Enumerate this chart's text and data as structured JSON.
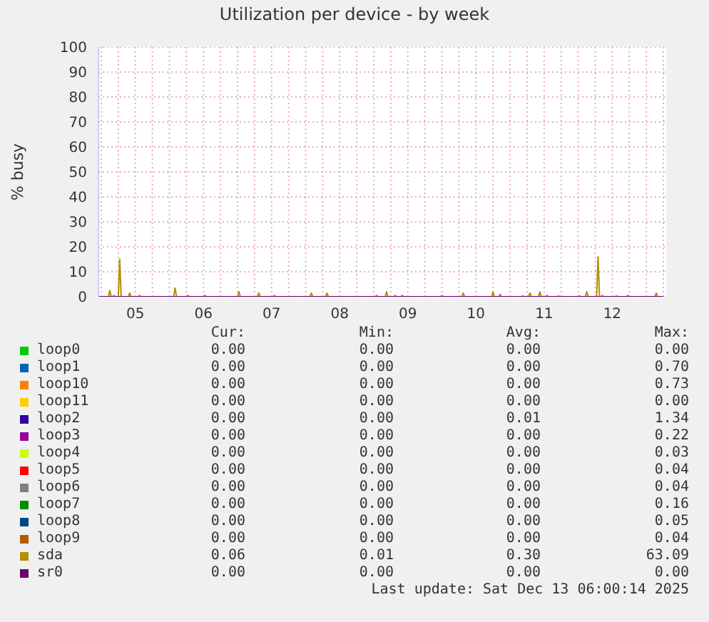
{
  "chart_data": {
    "type": "line",
    "title": "Utilization per device - by week",
    "ylabel": "% busy",
    "xlim": [
      "2025-12-04T23:00",
      "2025-12-13T07:00"
    ],
    "xticks": [
      {
        "value": "2025-12-05T00:00",
        "label": null
      },
      {
        "value": "2025-12-05T06:00",
        "label": null
      },
      {
        "value": "2025-12-05T12:00",
        "label": "05"
      },
      {
        "value": "2025-12-05T18:00",
        "label": null
      },
      {
        "value": "2025-12-06T00:00",
        "label": null
      },
      {
        "value": "2025-12-06T06:00",
        "label": null
      },
      {
        "value": "2025-12-06T12:00",
        "label": "06"
      },
      {
        "value": "2025-12-06T18:00",
        "label": null
      },
      {
        "value": "2025-12-07T00:00",
        "label": null
      },
      {
        "value": "2025-12-07T06:00",
        "label": null
      },
      {
        "value": "2025-12-07T12:00",
        "label": "07"
      },
      {
        "value": "2025-12-07T18:00",
        "label": null
      },
      {
        "value": "2025-12-08T00:00",
        "label": null
      },
      {
        "value": "2025-12-08T06:00",
        "label": null
      },
      {
        "value": "2025-12-08T12:00",
        "label": "08"
      },
      {
        "value": "2025-12-08T18:00",
        "label": null
      },
      {
        "value": "2025-12-09T00:00",
        "label": null
      },
      {
        "value": "2025-12-09T06:00",
        "label": null
      },
      {
        "value": "2025-12-09T12:00",
        "label": "09"
      },
      {
        "value": "2025-12-09T18:00",
        "label": null
      },
      {
        "value": "2025-12-10T00:00",
        "label": null
      },
      {
        "value": "2025-12-10T06:00",
        "label": null
      },
      {
        "value": "2025-12-10T12:00",
        "label": "10"
      },
      {
        "value": "2025-12-10T18:00",
        "label": null
      },
      {
        "value": "2025-12-11T00:00",
        "label": null
      },
      {
        "value": "2025-12-11T06:00",
        "label": null
      },
      {
        "value": "2025-12-11T12:00",
        "label": "11"
      },
      {
        "value": "2025-12-11T18:00",
        "label": null
      },
      {
        "value": "2025-12-12T00:00",
        "label": null
      },
      {
        "value": "2025-12-12T06:00",
        "label": null
      },
      {
        "value": "2025-12-12T12:00",
        "label": "12"
      },
      {
        "value": "2025-12-12T18:00",
        "label": null
      },
      {
        "value": "2025-12-13T00:00",
        "label": null
      },
      {
        "value": "2025-12-13T06:00",
        "label": null
      }
    ],
    "ylim": [
      0,
      100
    ],
    "yticks": [
      0,
      10,
      20,
      30,
      40,
      50,
      60,
      70,
      80,
      90,
      100
    ],
    "grid": true,
    "legend": "bottom",
    "series": [
      {
        "name": "loop0",
        "color": "#00cc00"
      },
      {
        "name": "loop1",
        "color": "#0066b3"
      },
      {
        "name": "loop10",
        "color": "#ff8000"
      },
      {
        "name": "loop11",
        "color": "#ffcc00"
      },
      {
        "name": "loop2",
        "color": "#330099"
      },
      {
        "name": "loop3",
        "color": "#990099"
      },
      {
        "name": "loop4",
        "color": "#ccff00"
      },
      {
        "name": "loop5",
        "color": "#ff0000"
      },
      {
        "name": "loop6",
        "color": "#808080"
      },
      {
        "name": "loop7",
        "color": "#008f00"
      },
      {
        "name": "loop8",
        "color": "#00487d"
      },
      {
        "name": "loop9",
        "color": "#b35a00"
      },
      {
        "name": "sda",
        "color": "#b38f00",
        "x": [
          "2025-12-04T23:00",
          "2025-12-05T02:30",
          "2025-12-05T03:00",
          "2025-12-05T03:30",
          "2025-12-05T04:00",
          "2025-12-05T04:30",
          "2025-12-05T05:00",
          "2025-12-05T06:00",
          "2025-12-05T06:30",
          "2025-12-05T07:00",
          "2025-12-05T09:30",
          "2025-12-05T10:00",
          "2025-12-05T10:30",
          "2025-12-05T13:00",
          "2025-12-05T13:30",
          "2025-12-05T14:00",
          "2025-12-06T01:30",
          "2025-12-06T02:00",
          "2025-12-06T02:30",
          "2025-12-06T06:00",
          "2025-12-06T06:30",
          "2025-12-06T07:00",
          "2025-12-06T12:00",
          "2025-12-06T12:30",
          "2025-12-06T13:00",
          "2025-12-07T00:00",
          "2025-12-07T00:30",
          "2025-12-07T01:00",
          "2025-12-07T07:00",
          "2025-12-07T07:30",
          "2025-12-07T08:00",
          "2025-12-07T12:30",
          "2025-12-07T13:00",
          "2025-12-07T13:30",
          "2025-12-08T01:30",
          "2025-12-08T02:00",
          "2025-12-08T02:30",
          "2025-12-08T07:00",
          "2025-12-08T07:30",
          "2025-12-08T08:00",
          "2025-12-09T00:30",
          "2025-12-09T01:00",
          "2025-12-09T01:30",
          "2025-12-09T04:00",
          "2025-12-09T04:30",
          "2025-12-09T05:00",
          "2025-12-09T07:00",
          "2025-12-09T07:30",
          "2025-12-09T08:00",
          "2025-12-09T09:30",
          "2025-12-09T10:00",
          "2025-12-09T10:30",
          "2025-12-09T23:30",
          "2025-12-10T00:00",
          "2025-12-10T00:30",
          "2025-12-10T07:00",
          "2025-12-10T07:30",
          "2025-12-10T08:00",
          "2025-12-10T17:30",
          "2025-12-10T18:00",
          "2025-12-10T18:30",
          "2025-12-10T20:00",
          "2025-12-10T20:30",
          "2025-12-10T21:00",
          "2025-12-11T04:00",
          "2025-12-11T04:30",
          "2025-12-11T05:00",
          "2025-12-11T06:30",
          "2025-12-11T07:00",
          "2025-12-11T07:30",
          "2025-12-11T10:00",
          "2025-12-11T10:30",
          "2025-12-11T11:00",
          "2025-12-11T12:30",
          "2025-12-11T13:00",
          "2025-12-11T13:30",
          "2025-12-11T16:30",
          "2025-12-11T17:00",
          "2025-12-11T17:30",
          "2025-12-12T00:00",
          "2025-12-12T00:30",
          "2025-12-12T01:00",
          "2025-12-12T02:30",
          "2025-12-12T03:00",
          "2025-12-12T03:30",
          "2025-12-12T06:30",
          "2025-12-12T07:00",
          "2025-12-12T07:30",
          "2025-12-12T08:00",
          "2025-12-12T08:30",
          "2025-12-12T09:00",
          "2025-12-12T13:00",
          "2025-12-12T13:30",
          "2025-12-12T14:00",
          "2025-12-12T17:00",
          "2025-12-12T17:30",
          "2025-12-12T18:00",
          "2025-12-13T03:00",
          "2025-12-13T03:30",
          "2025-12-13T04:00",
          "2025-12-13T06:00"
        ],
        "values": [
          0,
          0,
          2.5,
          0,
          0,
          0.5,
          0,
          0,
          15,
          0,
          0,
          1.5,
          0,
          0,
          0.5,
          0,
          0,
          3.5,
          0,
          0,
          0.5,
          0,
          0,
          0.5,
          0,
          0,
          2,
          0,
          0,
          1.5,
          0,
          0,
          0.5,
          0,
          0,
          1.5,
          0,
          0,
          1.5,
          0,
          0,
          0.5,
          0,
          0,
          2,
          0,
          0,
          0.5,
          0,
          0,
          0.5,
          0,
          0,
          0.5,
          0,
          0,
          1.5,
          0,
          0,
          2,
          0,
          0,
          1,
          0,
          0,
          0.3,
          0,
          0,
          1.5,
          0,
          0,
          2,
          0,
          0,
          0.5,
          0,
          0,
          0.3,
          0,
          0,
          0.3,
          0,
          0,
          2,
          0,
          0,
          16,
          0,
          0,
          0.5,
          0,
          0,
          0.3,
          0,
          0,
          0.5,
          0,
          0,
          1.5,
          0,
          0
        ]
      },
      {
        "name": "sr0",
        "color": "#6b006b",
        "x": [
          "2025-12-04T23:00",
          "2025-12-13T06:00"
        ],
        "values": [
          0,
          0
        ]
      }
    ],
    "annotations": [
      "Cur:",
      "Min:",
      "Avg:",
      "Max:",
      "0.00",
      "0.00",
      "0.00",
      "0.00",
      "0.00",
      "0.00",
      "0.00",
      "0.70",
      "0.00",
      "0.00",
      "0.00",
      "0.73",
      "0.00",
      "0.00",
      "0.00",
      "0.00",
      "0.00",
      "0.00",
      "0.01",
      "1.34",
      "0.00",
      "0.00",
      "0.00",
      "0.22",
      "0.00",
      "0.00",
      "0.00",
      "0.03",
      "0.00",
      "0.00",
      "0.00",
      "0.04",
      "0.00",
      "0.00",
      "0.00",
      "0.04",
      "0.00",
      "0.00",
      "0.00",
      "0.16",
      "0.00",
      "0.00",
      "0.00",
      "0.05",
      "0.00",
      "0.00",
      "0.00",
      "0.04",
      "0.06",
      "0.01",
      "0.30",
      "63.09",
      "0.00",
      "0.00",
      "0.00",
      "0.00",
      "Last update: Sat Dec 13 06:00:14 2025"
    ]
  }
}
